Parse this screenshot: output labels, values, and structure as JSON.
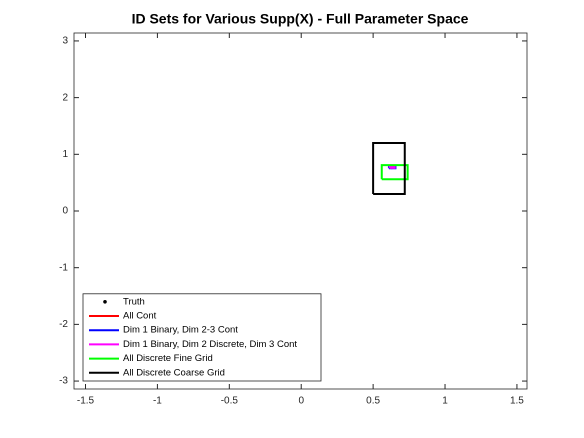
{
  "chart_data": {
    "type": "line",
    "title": "ID Sets for Various Supp(X) - Full Parameter Space",
    "xlim": [
      -1.58,
      1.57
    ],
    "ylim": [
      -3.14,
      3.14
    ],
    "xticks": [
      -1.5,
      -1,
      -0.5,
      0,
      0.5,
      1,
      1.5
    ],
    "yticks": [
      -3,
      -2,
      -1,
      0,
      1,
      2,
      3
    ],
    "legend": "southwest",
    "series": [
      {
        "name": "Truth",
        "color": "#000000",
        "marker": "dot",
        "x": [
          0.63
        ],
        "y": [
          0.77
        ]
      },
      {
        "name": "All Cont",
        "color": "#ff0000",
        "x": [
          0.62,
          0.64,
          0.64,
          0.62,
          0.62
        ],
        "y": [
          0.76,
          0.76,
          0.78,
          0.78,
          0.76
        ]
      },
      {
        "name": "Dim 1 Binary, Dim 2-3 Cont",
        "color": "#0000ff",
        "x": [
          0.61,
          0.655,
          0.655,
          0.61,
          0.61
        ],
        "y": [
          0.755,
          0.755,
          0.79,
          0.79,
          0.755
        ]
      },
      {
        "name": "Dim 1 Binary, Dim 2 Discrete, Dim 3 Cont",
        "color": "#ff00ff",
        "x": [
          0.615,
          0.65,
          0.65,
          0.615,
          0.615
        ],
        "y": [
          0.76,
          0.76,
          0.785,
          0.785,
          0.76
        ]
      },
      {
        "name": "All Discrete Fine Grid",
        "color": "#00ff00",
        "x": [
          0.56,
          0.74,
          0.74,
          0.56,
          0.56
        ],
        "y": [
          0.56,
          0.56,
          0.81,
          0.81,
          0.56
        ]
      },
      {
        "name": "All Discrete Coarse Grid",
        "color": "#000000",
        "x": [
          0.5,
          0.72,
          0.72,
          0.5,
          0.5
        ],
        "y": [
          0.3,
          0.3,
          1.2,
          1.2,
          0.3
        ]
      }
    ]
  }
}
